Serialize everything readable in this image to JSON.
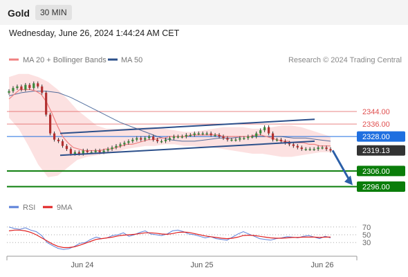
{
  "header": {
    "symbol": "Gold",
    "timeframe": "30 MIN",
    "datetime": "Wednesday, June 26, 2024 1:44:24 AM CET",
    "credit": "Research © 2024 Trading Central"
  },
  "colors": {
    "ma20": "#f08080",
    "ma50": "#2b4f8a",
    "bollinger_fill": "#fbd7d7",
    "resistance": "#e05050",
    "pivot": "#1f6fe0",
    "support": "#0a7d0a",
    "last": "#333333",
    "rsi": "#5a7fd8",
    "rsi_ma": "#e02020",
    "channel": "#2b4f8a"
  },
  "chart_data": [
    {
      "type": "line",
      "title": "",
      "legend": [
        {
          "name": "MA 20 + Bollinger Bands",
          "color": "#f08080"
        },
        {
          "name": "MA 50",
          "color": "#2b4f8a"
        }
      ],
      "x_ticks": [
        "Jun 24",
        "Jun 25",
        "Jun 26"
      ],
      "ylim": [
        2290,
        2371
      ],
      "price_levels": [
        {
          "label": "2344.00",
          "value": 2344,
          "kind": "resistance"
        },
        {
          "label": "2336.00",
          "value": 2336,
          "kind": "resistance"
        },
        {
          "label": "2328.00",
          "value": 2328,
          "kind": "pivot"
        },
        {
          "label": "2319.13",
          "value": 2319.13,
          "kind": "last"
        },
        {
          "label": "2306.00",
          "value": 2306,
          "kind": "support"
        },
        {
          "label": "2296.00",
          "value": 2296,
          "kind": "support"
        }
      ],
      "close": [
        2357,
        2359,
        2360,
        2358,
        2361,
        2359,
        2362,
        2360,
        2356,
        2342,
        2330,
        2326,
        2325,
        2322,
        2320,
        2317,
        2318,
        2317,
        2319,
        2318,
        2318,
        2319,
        2318,
        2319,
        2320,
        2321,
        2322,
        2323,
        2324,
        2325,
        2326,
        2327,
        2326,
        2327,
        2328,
        2326,
        2325,
        2325,
        2326,
        2327,
        2328,
        2328,
        2328,
        2329,
        2329,
        2330,
        2330,
        2330,
        2330,
        2329,
        2329,
        2328,
        2327,
        2326,
        2326,
        2326,
        2327,
        2327,
        2328,
        2328,
        2330,
        2332,
        2334,
        2330,
        2326,
        2326,
        2325,
        2324,
        2323,
        2322,
        2321,
        2320,
        2320,
        2320,
        2320,
        2321,
        2321,
        2320,
        2319
      ],
      "ma20": [
        2352,
        2355,
        2358,
        2358,
        2358,
        2357,
        2355,
        2350,
        2343,
        2335,
        2328,
        2324,
        2321,
        2320,
        2319,
        2319,
        2319,
        2319,
        2320,
        2320,
        2321,
        2322,
        2323,
        2323,
        2324,
        2325,
        2326,
        2326,
        2327,
        2327,
        2328,
        2328,
        2328,
        2328,
        2329,
        2329,
        2329,
        2329,
        2329,
        2329,
        2328,
        2328,
        2328,
        2328,
        2328,
        2328,
        2329,
        2329,
        2328,
        2327,
        2326,
        2325,
        2325,
        2324,
        2324,
        2324,
        2323,
        2323,
        2322,
        2322,
        2322
      ],
      "ma50": [
        2354,
        2356,
        2357,
        2357,
        2356,
        2353,
        2349,
        2345,
        2341,
        2337,
        2334,
        2331,
        2328,
        2326,
        2325,
        2325,
        2326,
        2327,
        2327,
        2328,
        2328,
        2328,
        2328,
        2327,
        2327,
        2326,
        2325
      ],
      "bb_upper": [
        2366,
        2368,
        2368,
        2366,
        2363,
        2358,
        2352,
        2345,
        2340,
        2335,
        2333,
        2333,
        2333,
        2334,
        2334,
        2334,
        2333,
        2332,
        2331,
        2331,
        2332,
        2333,
        2334,
        2334,
        2334,
        2333,
        2333,
        2334,
        2335,
        2335,
        2334,
        2332,
        2330,
        2328
      ],
      "bb_lower": [
        2340,
        2333,
        2322,
        2310,
        2302,
        2303,
        2308,
        2313,
        2315,
        2316,
        2317,
        2318,
        2320,
        2321,
        2322,
        2322,
        2323,
        2323,
        2322,
        2322,
        2321,
        2321,
        2320,
        2319,
        2318,
        2317,
        2317,
        2316,
        2315,
        2315,
        2316,
        2317,
        2318,
        2318
      ],
      "channel": {
        "upper": {
          "from": 2330,
          "to": 2339
        },
        "lower": {
          "from": 2316,
          "to": 2325
        }
      },
      "arrow": {
        "from": 2319.13,
        "to": 2296
      }
    },
    {
      "type": "line",
      "title": "",
      "legend": [
        {
          "name": "RSI",
          "color": "#5a7fd8"
        },
        {
          "name": "9MA",
          "color": "#e02020"
        }
      ],
      "y_ticks": [
        "70",
        "50",
        "30"
      ],
      "ylim": [
        0,
        100
      ],
      "rsi": [
        70,
        66,
        64,
        68,
        62,
        58,
        48,
        30,
        22,
        15,
        12,
        14,
        20,
        28,
        30,
        38,
        44,
        40,
        42,
        48,
        50,
        55,
        46,
        50,
        56,
        60,
        52,
        50,
        48,
        52,
        60,
        62,
        58,
        52,
        50,
        46,
        42,
        45,
        40,
        38,
        36,
        44,
        52,
        58,
        52,
        46,
        40,
        38,
        36,
        40,
        42,
        45,
        44,
        42,
        46,
        48,
        44,
        40,
        46,
        42
      ],
      "rsi_ma": [
        60,
        62,
        62,
        60,
        56,
        50,
        42,
        34,
        26,
        20,
        17,
        17,
        19,
        23,
        28,
        33,
        38,
        40,
        42,
        44,
        47,
        49,
        50,
        51,
        53,
        55,
        55,
        54,
        52,
        51,
        53,
        56,
        57,
        56,
        53,
        50,
        47,
        45,
        43,
        41,
        40,
        41,
        44,
        48,
        49,
        48,
        46,
        44,
        42,
        41,
        41,
        42,
        43,
        43,
        44,
        44,
        44,
        43,
        44,
        44
      ]
    }
  ]
}
